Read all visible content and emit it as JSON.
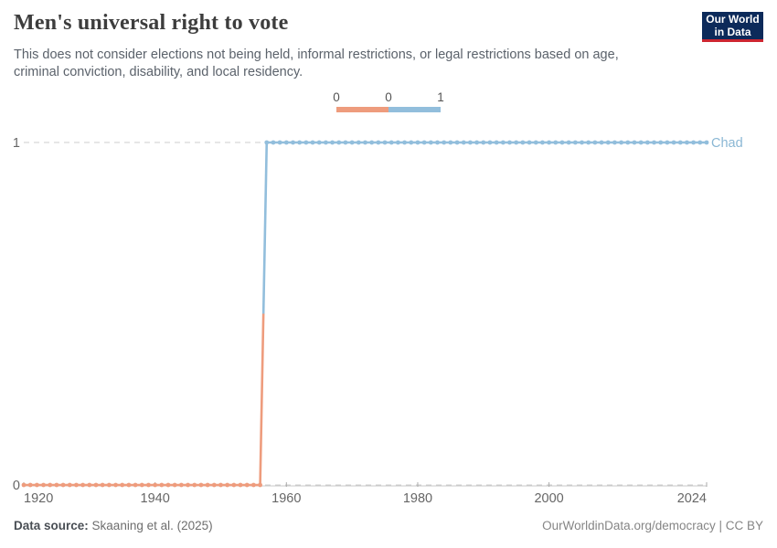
{
  "header": {
    "title": "Men's universal right to vote",
    "subtitle": "This does not consider elections not being held, informal restrictions, or legal restrictions based on age, criminal conviction, disability, and local residency."
  },
  "logo": {
    "line1": "Our World",
    "line2": "in Data"
  },
  "legend": {
    "labels": [
      "0",
      "0",
      "1"
    ],
    "bins": [
      {
        "from": "0",
        "to": "0",
        "color": "#EE9C7D"
      },
      {
        "from": "0",
        "to": "1",
        "color": "#92BEDC"
      }
    ]
  },
  "chart_data": {
    "type": "line",
    "step": true,
    "title": "Men's universal right to vote",
    "entity": "Chad",
    "x_range": [
      1920,
      2024
    ],
    "y_range": [
      0,
      1
    ],
    "x_ticks": [
      1920,
      1940,
      1960,
      1980,
      2000,
      2024
    ],
    "y_ticks": [
      0,
      1
    ],
    "grid": "horizontal-dashed",
    "legend_position": "top-center",
    "series": [
      {
        "name": "Chad",
        "color_by_value": {
          "0": "#EE9C7D",
          "1": "#92BEDC"
        },
        "segments": [
          {
            "from_year": 1920,
            "to_year": 1956,
            "value": 0
          },
          {
            "from_year": 1957,
            "to_year": 2024,
            "value": 1
          }
        ]
      }
    ]
  },
  "footer": {
    "datasource_label": "Data source:",
    "datasource_value": "Skaaning et al. (2025)",
    "link": "OurWorldinData.org/democracy | CC BY"
  },
  "colors": {
    "value_0": "#EE9C7D",
    "value_1": "#92BEDC",
    "entity_label": "#8AB7D4",
    "logo_bg": "#0C2A5A",
    "logo_stripe": "#CE2631",
    "axis_text": "#666666",
    "axis_line": "#c8c8c8",
    "tick_mark": "#aaaaaa",
    "grid": "#cccccc"
  }
}
